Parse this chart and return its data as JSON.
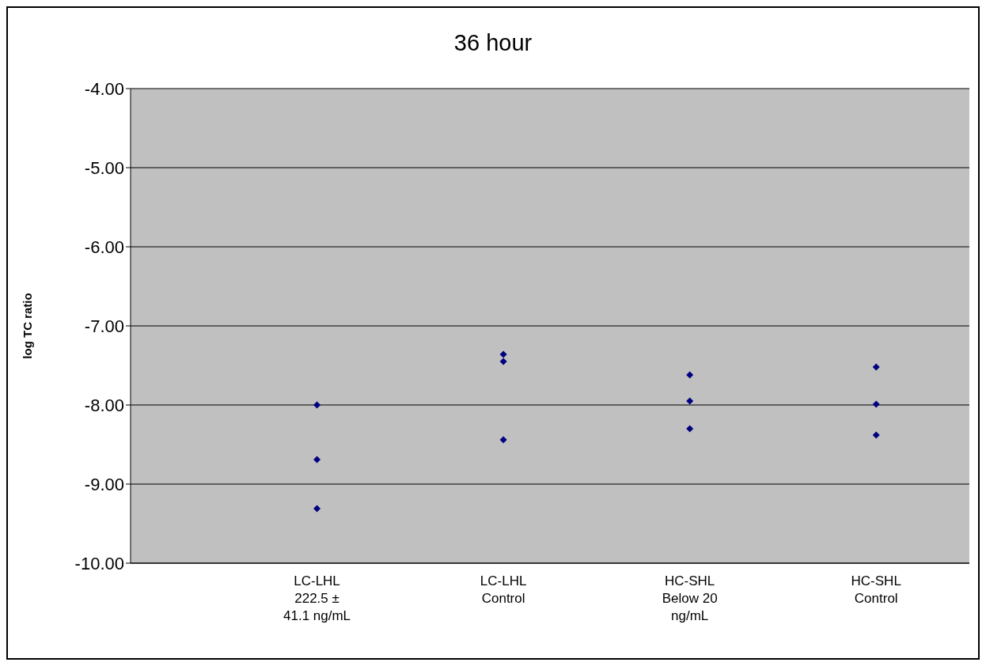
{
  "chart_data": {
    "type": "scatter",
    "title": "36 hour",
    "ylabel": "log TC ratio",
    "categories": [
      "LC-LHL 222.5 ± 41.1 ng/mL",
      "LC-LHL Control",
      "HC-SHL Below 20 ng/mL",
      "HC-SHL Control"
    ],
    "series": [
      {
        "color": "#000080",
        "x": [
          "LC-LHL 222.5 ± 41.1 ng/mL",
          "LC-LHL 222.5 ± 41.1 ng/mL",
          "LC-LHL 222.5 ± 41.1 ng/mL",
          "LC-LHL Control",
          "LC-LHL Control",
          "LC-LHL Control",
          "HC-SHL Below 20 ng/mL",
          "HC-SHL Below 20 ng/mL",
          "HC-SHL Below 20 ng/mL",
          "HC-SHL Control",
          "HC-SHL Control",
          "HC-SHL Control"
        ],
        "values": [
          -8.0,
          -8.69,
          -9.31,
          -7.36,
          -7.45,
          -8.44,
          -7.62,
          -7.95,
          -8.3,
          -7.52,
          -7.99,
          -8.38
        ]
      }
    ],
    "ylim": [
      -10,
      -4
    ],
    "yticks": [
      {
        "value": -10,
        "label": "-10.00"
      },
      {
        "value": -9,
        "label": "-9.00"
      },
      {
        "value": -8,
        "label": "-8.00"
      },
      {
        "value": -7,
        "label": "-7.00"
      },
      {
        "value": -6,
        "label": "-6.00"
      },
      {
        "value": -5,
        "label": "-5.00"
      },
      {
        "value": -4,
        "label": "-4.00"
      }
    ],
    "grid": "y",
    "legend": false,
    "marker": "diamond"
  }
}
